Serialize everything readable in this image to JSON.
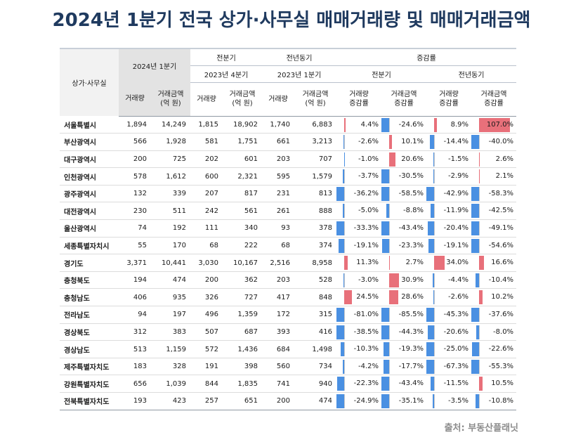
{
  "title": "2024년 1분기 전국 상가·사무실  매매거래량 및 매매거래금액",
  "headers": {
    "region": "상가·사무실",
    "current": "2024년 1분기",
    "prev_q_group": "전분기",
    "prev_q": "2023년 4분기",
    "prev_y_group": "전년동기",
    "prev_y": "2023년 1분기",
    "change_group": "증감률",
    "change_q": "전분기",
    "change_y": "전년동기",
    "volume": "거래량",
    "amount_line1": "거래금액",
    "amount_line2": "(억 원)",
    "vol_change_line1": "거래량",
    "vol_change_line2": "증감률",
    "amt_change_line1": "거래금액",
    "amt_change_line2": "증감률"
  },
  "rows": [
    {
      "region": "서울특별시",
      "vol": "1,894",
      "amt": "14,249",
      "pvol": "1,815",
      "pamt": "18,902",
      "yvol": "1,740",
      "yamt": "6,883",
      "c1": 4.4,
      "c2": -24.6,
      "c3": 8.9,
      "c4": 107.0,
      "c1t": "4.4%",
      "c2t": "-24.6%",
      "c3t": "8.9%",
      "c4t": "107.0%"
    },
    {
      "region": "부산광역시",
      "vol": "566",
      "amt": "1,928",
      "pvol": "581",
      "pamt": "1,751",
      "yvol": "661",
      "yamt": "3,213",
      "c1": -2.6,
      "c2": 10.1,
      "c3": -14.4,
      "c4": -40.0,
      "c1t": "-2.6%",
      "c2t": "10.1%",
      "c3t": "-14.4%",
      "c4t": "-40.0%"
    },
    {
      "region": "대구광역시",
      "vol": "200",
      "amt": "725",
      "pvol": "202",
      "pamt": "601",
      "yvol": "203",
      "yamt": "707",
      "c1": -1.0,
      "c2": 20.6,
      "c3": -1.5,
      "c4": 2.6,
      "c1t": "-1.0%",
      "c2t": "20.6%",
      "c3t": "-1.5%",
      "c4t": "2.6%"
    },
    {
      "region": "인천광역시",
      "vol": "578",
      "amt": "1,612",
      "pvol": "600",
      "pamt": "2,321",
      "yvol": "595",
      "yamt": "1,579",
      "c1": -3.7,
      "c2": -30.5,
      "c3": -2.9,
      "c4": 2.1,
      "c1t": "-3.7%",
      "c2t": "-30.5%",
      "c3t": "-2.9%",
      "c4t": "2.1%"
    },
    {
      "region": "광주광역시",
      "vol": "132",
      "amt": "339",
      "pvol": "207",
      "pamt": "817",
      "yvol": "231",
      "yamt": "813",
      "c1": -36.2,
      "c2": -58.5,
      "c3": -42.9,
      "c4": -58.3,
      "c1t": "-36.2%",
      "c2t": "-58.5%",
      "c3t": "-42.9%",
      "c4t": "-58.3%"
    },
    {
      "region": "대전광역시",
      "vol": "230",
      "amt": "511",
      "pvol": "242",
      "pamt": "561",
      "yvol": "261",
      "yamt": "888",
      "c1": -5.0,
      "c2": -8.8,
      "c3": -11.9,
      "c4": -42.5,
      "c1t": "-5.0%",
      "c2t": "-8.8%",
      "c3t": "-11.9%",
      "c4t": "-42.5%"
    },
    {
      "region": "울산광역시",
      "vol": "74",
      "amt": "192",
      "pvol": "111",
      "pamt": "340",
      "yvol": "93",
      "yamt": "378",
      "c1": -33.3,
      "c2": -43.4,
      "c3": -20.4,
      "c4": -49.1,
      "c1t": "-33.3%",
      "c2t": "-43.4%",
      "c3t": "-20.4%",
      "c4t": "-49.1%"
    },
    {
      "region": "세종특별자치시",
      "vol": "55",
      "amt": "170",
      "pvol": "68",
      "pamt": "222",
      "yvol": "68",
      "yamt": "374",
      "c1": -19.1,
      "c2": -23.3,
      "c3": -19.1,
      "c4": -54.6,
      "c1t": "-19.1%",
      "c2t": "-23.3%",
      "c3t": "-19.1%",
      "c4t": "-54.6%"
    },
    {
      "region": "경기도",
      "vol": "3,371",
      "amt": "10,441",
      "pvol": "3,030",
      "pamt": "10,167",
      "yvol": "2,516",
      "yamt": "8,958",
      "c1": 11.3,
      "c2": 2.7,
      "c3": 34.0,
      "c4": 16.6,
      "c1t": "11.3%",
      "c2t": "2.7%",
      "c3t": "34.0%",
      "c4t": "16.6%"
    },
    {
      "region": "충청북도",
      "vol": "194",
      "amt": "474",
      "pvol": "200",
      "pamt": "362",
      "yvol": "203",
      "yamt": "528",
      "c1": -3.0,
      "c2": 30.9,
      "c3": -4.4,
      "c4": -10.4,
      "c1t": "-3.0%",
      "c2t": "30.9%",
      "c3t": "-4.4%",
      "c4t": "-10.4%"
    },
    {
      "region": "충청남도",
      "vol": "406",
      "amt": "935",
      "pvol": "326",
      "pamt": "727",
      "yvol": "417",
      "yamt": "848",
      "c1": 24.5,
      "c2": 28.6,
      "c3": -2.6,
      "c4": 10.2,
      "c1t": "24.5%",
      "c2t": "28.6%",
      "c3t": "-2.6%",
      "c4t": "10.2%"
    },
    {
      "region": "전라남도",
      "vol": "94",
      "amt": "197",
      "pvol": "496",
      "pamt": "1,359",
      "yvol": "172",
      "yamt": "315",
      "c1": -81.0,
      "c2": -85.5,
      "c3": -45.3,
      "c4": -37.6,
      "c1t": "-81.0%",
      "c2t": "-85.5%",
      "c3t": "-45.3%",
      "c4t": "-37.6%"
    },
    {
      "region": "경상북도",
      "vol": "312",
      "amt": "383",
      "pvol": "507",
      "pamt": "687",
      "yvol": "393",
      "yamt": "416",
      "c1": -38.5,
      "c2": -44.3,
      "c3": -20.6,
      "c4": -8.0,
      "c1t": "-38.5%",
      "c2t": "-44.3%",
      "c3t": "-20.6%",
      "c4t": "-8.0%"
    },
    {
      "region": "경상남도",
      "vol": "513",
      "amt": "1,159",
      "pvol": "572",
      "pamt": "1,436",
      "yvol": "684",
      "yamt": "1,498",
      "c1": -10.3,
      "c2": -19.3,
      "c3": -25.0,
      "c4": -22.6,
      "c1t": "-10.3%",
      "c2t": "-19.3%",
      "c3t": "-25.0%",
      "c4t": "-22.6%"
    },
    {
      "region": "제주특별자치도",
      "vol": "183",
      "amt": "328",
      "pvol": "191",
      "pamt": "398",
      "yvol": "560",
      "yamt": "734",
      "c1": -4.2,
      "c2": -17.7,
      "c3": -67.3,
      "c4": -55.3,
      "c1t": "-4.2%",
      "c2t": "-17.7%",
      "c3t": "-67.3%",
      "c4t": "-55.3%"
    },
    {
      "region": "강원특별자치도",
      "vol": "656",
      "amt": "1,039",
      "pvol": "844",
      "pamt": "1,835",
      "yvol": "741",
      "yamt": "940",
      "c1": -22.3,
      "c2": -43.4,
      "c3": -11.5,
      "c4": 10.5,
      "c1t": "-22.3%",
      "c2t": "-43.4%",
      "c3t": "-11.5%",
      "c4t": "10.5%"
    },
    {
      "region": "전북특별자치도",
      "vol": "193",
      "amt": "423",
      "pvol": "257",
      "pamt": "651",
      "yvol": "200",
      "yamt": "474",
      "c1": -24.9,
      "c2": -35.1,
      "c3": -3.5,
      "c4": -10.8,
      "c1t": "-24.9%",
      "c2t": "-35.1%",
      "c3t": "-3.5%",
      "c4t": "-10.8%"
    }
  ],
  "source": "출처: 부동산플래닛"
}
